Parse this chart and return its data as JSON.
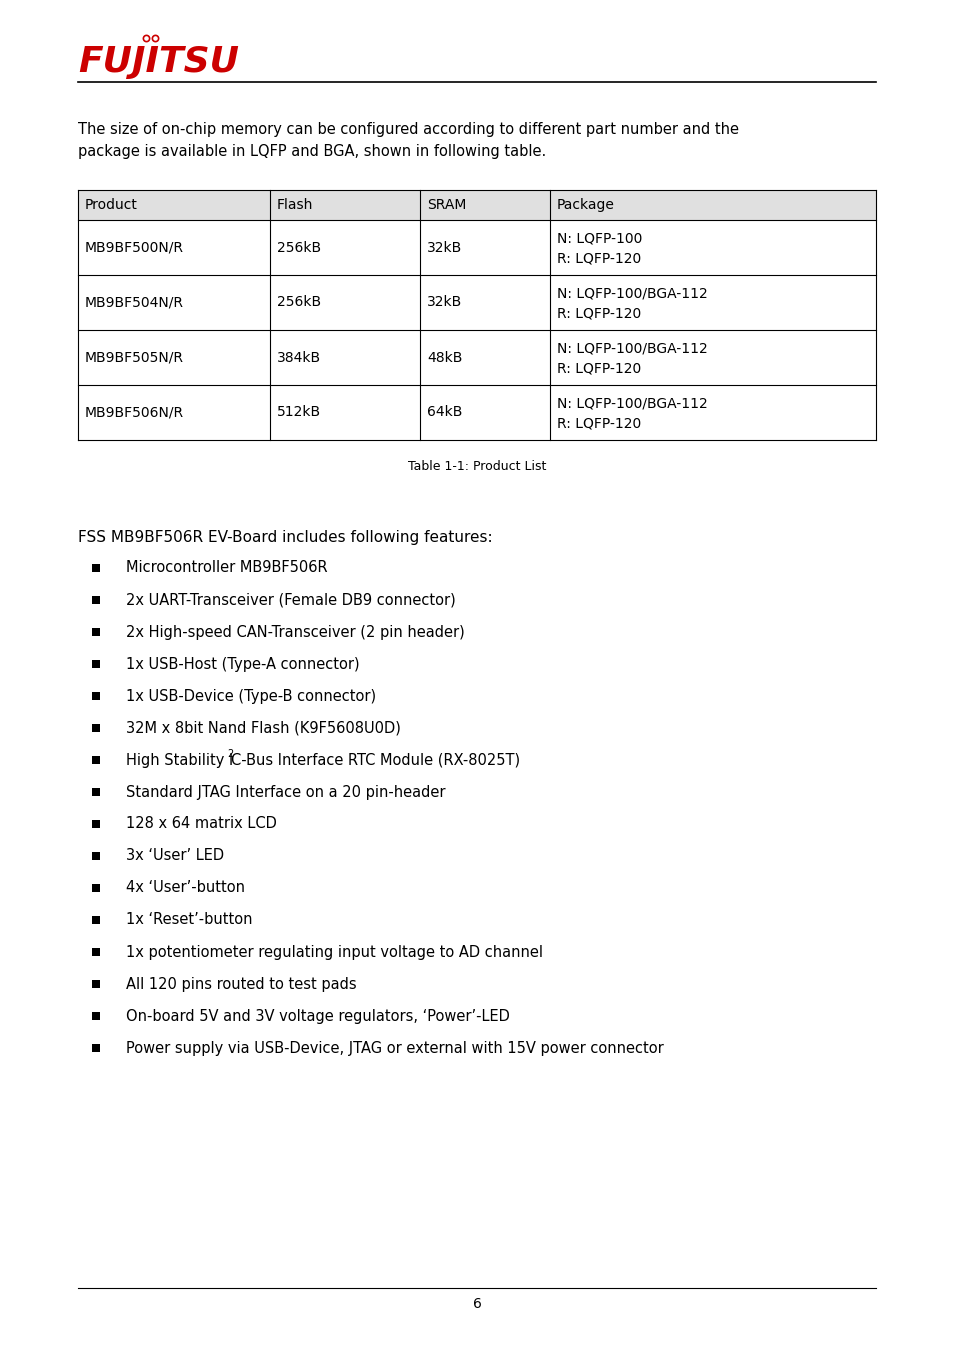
{
  "page_bg": "#ffffff",
  "logo_text": "FUJITSU",
  "logo_color": "#cc0000",
  "intro_text": "The size of on-chip memory can be configured according to different part number and the\npackage is available in LQFP and BGA, shown in following table.",
  "table_caption": "Table 1-1: Product List",
  "table_headers": [
    "Product",
    "Flash",
    "SRAM",
    "Package"
  ],
  "table_rows": [
    [
      "MB9BF500N/R",
      "256kB",
      "32kB",
      "N: LQFP-100\nR: LQFP-120"
    ],
    [
      "MB9BF504N/R",
      "256kB",
      "32kB",
      "N: LQFP-100/BGA-112\nR: LQFP-120"
    ],
    [
      "MB9BF505N/R",
      "384kB",
      "48kB",
      "N: LQFP-100/BGA-112\nR: LQFP-120"
    ],
    [
      "MB9BF506N/R",
      "512kB",
      "64kB",
      "N: LQFP-100/BGA-112\nR: LQFP-120"
    ]
  ],
  "header_bg": "#e0e0e0",
  "features_intro": "FSS MB9BF506R EV-Board includes following features:",
  "bullet_items": [
    "Microcontroller MB9BF506R",
    "2x UART-Transceiver (Female DB9 connector)",
    "2x High-speed CAN-Transceiver (2 pin header)",
    "1x USB-Host (Type-A connector)",
    "1x USB-Device (Type-B connector)",
    "32M x 8bit Nand Flash (K9F5608U0D)",
    "HIGH_STABILITY_I2C",
    "Standard JTAG Interface on a 20 pin-header",
    "128 x 64 matrix LCD",
    "3x ‘User’ LED",
    "4x ‘User’-button",
    "1x ‘Reset’-button",
    "1x potentiometer regulating input voltage to AD channel",
    "All 120 pins routed to test pads",
    "On-board 5V and 3V voltage regulators, ‘Power’-LED",
    "Power supply via USB-Device, JTAG or external with 15V power connector"
  ],
  "page_number": "6",
  "font_size_body": 10.5,
  "font_size_table": 10.0,
  "font_size_caption": 9.0,
  "font_size_features": 11.0,
  "font_size_bullet": 10.5
}
